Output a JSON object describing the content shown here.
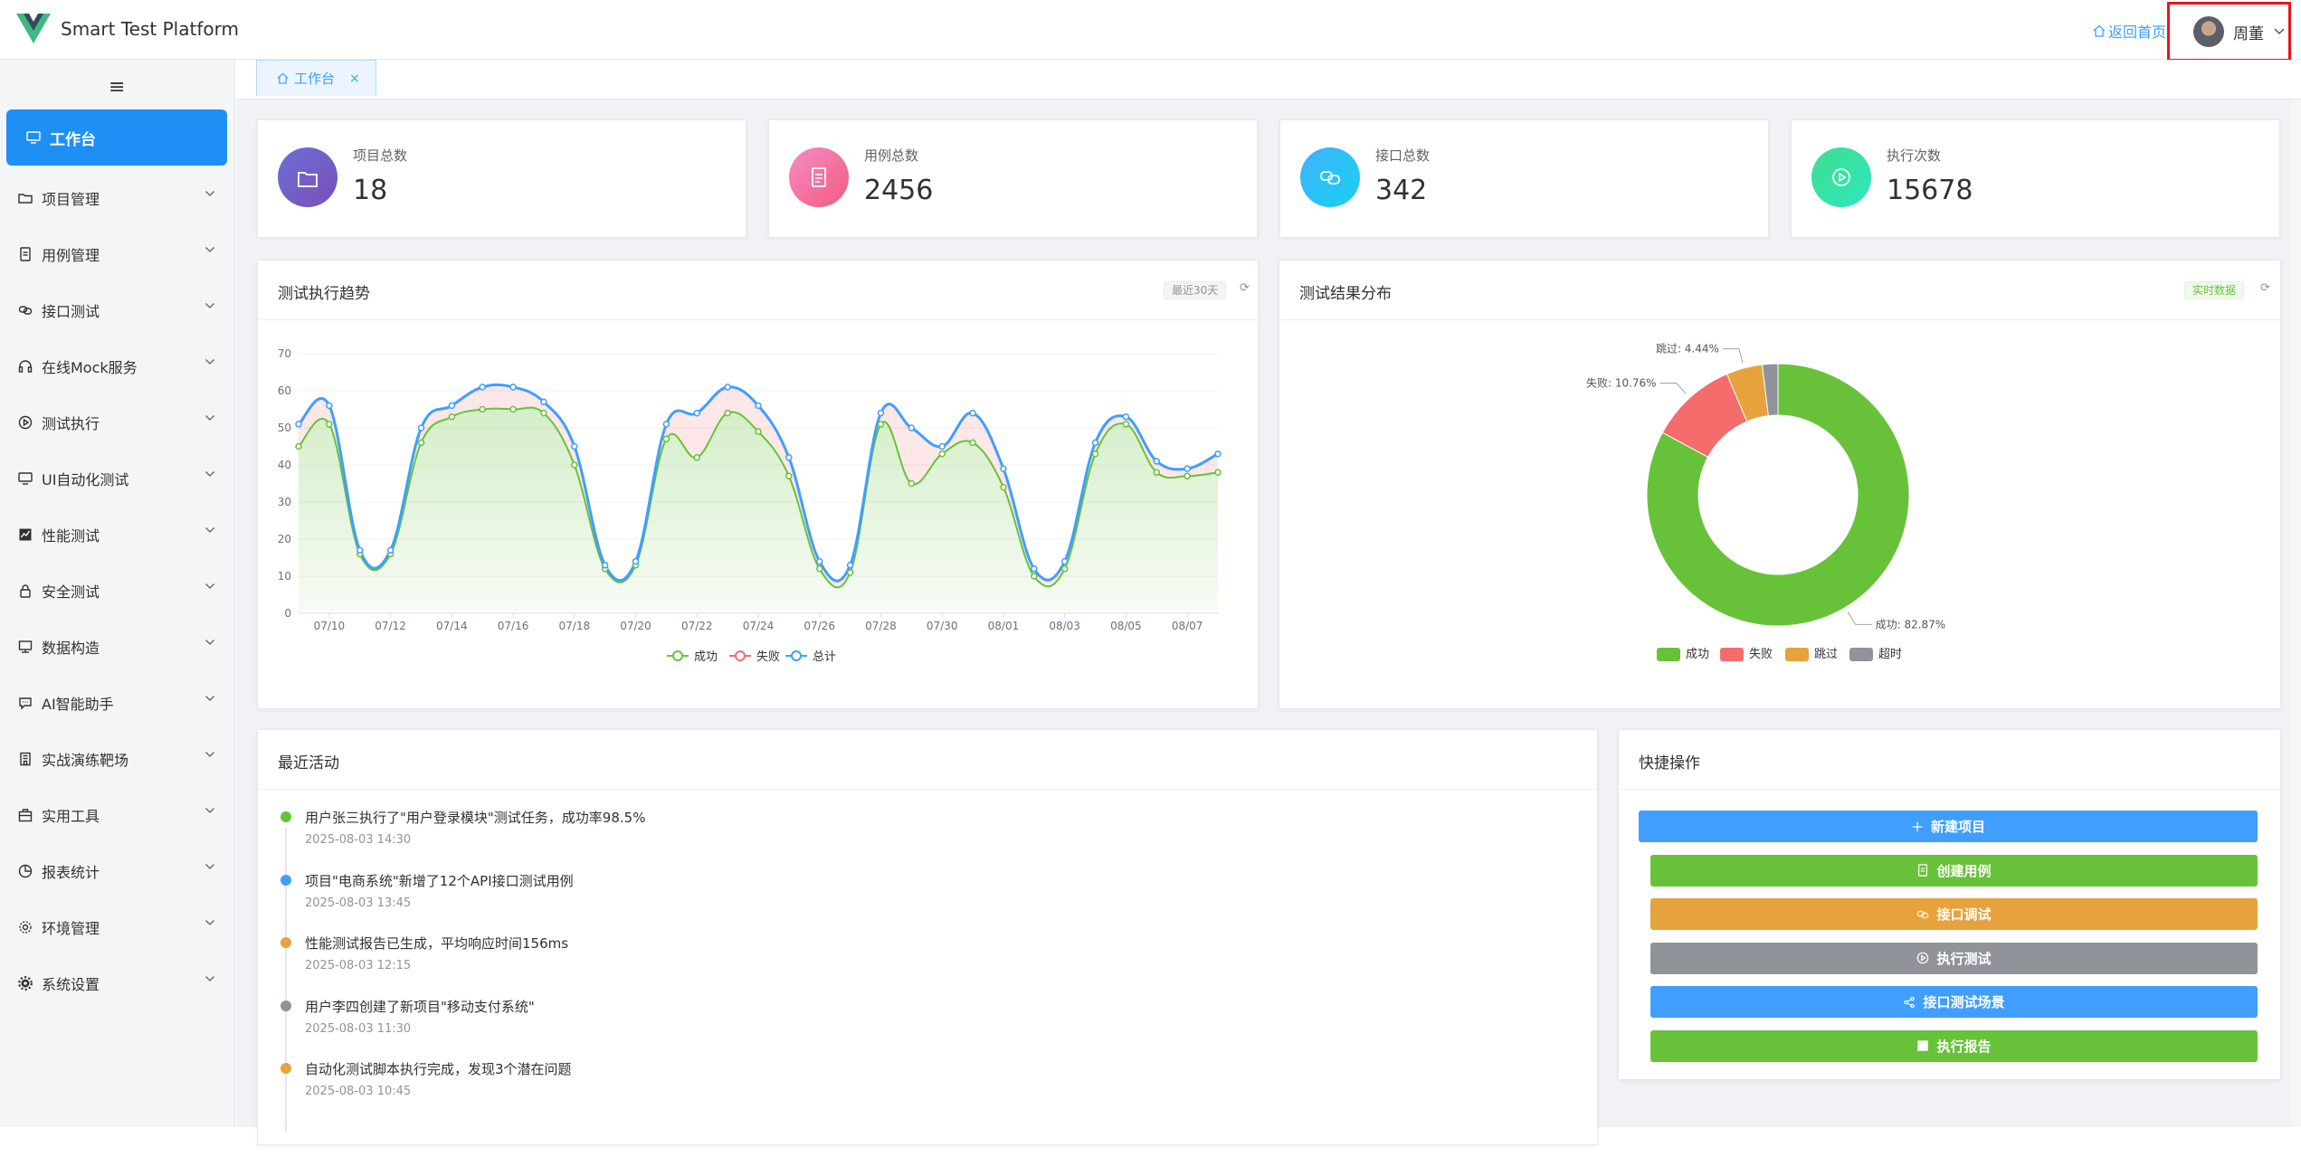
{
  "header": {
    "brand": "Smart Test Platform",
    "home_link": "返回首页",
    "user_name": "周董"
  },
  "sidebar": {
    "toggle": "≡",
    "active_item": "工作台",
    "items": [
      {
        "label": "项目管理",
        "icon": "folder-icon"
      },
      {
        "label": "用例管理",
        "icon": "document-icon"
      },
      {
        "label": "接口测试",
        "icon": "link-icon"
      },
      {
        "label": "在线Mock服务",
        "icon": "headset-icon"
      },
      {
        "label": "测试执行",
        "icon": "play-circle-icon"
      },
      {
        "label": "UI自动化测试",
        "icon": "monitor-icon"
      },
      {
        "label": "性能测试",
        "icon": "chart-icon"
      },
      {
        "label": "安全测试",
        "icon": "lock-icon"
      },
      {
        "label": "数据构造",
        "icon": "screen-icon"
      },
      {
        "label": "AI智能助手",
        "icon": "chat-icon"
      },
      {
        "label": "实战演练靶场",
        "icon": "building-icon"
      },
      {
        "label": "实用工具",
        "icon": "toolbox-icon"
      },
      {
        "label": "报表统计",
        "icon": "pie-icon"
      },
      {
        "label": "环境管理",
        "icon": "gear-icon"
      },
      {
        "label": "系统设置",
        "icon": "settings-icon"
      }
    ]
  },
  "tabs": [
    {
      "label": "工作台"
    }
  ],
  "stats": [
    {
      "label": "项目总数",
      "value": "18",
      "color_from": "#6a6fd6",
      "color_to": "#7b4fb8"
    },
    {
      "label": "用例总数",
      "value": "2456",
      "color_from": "#f58cc8",
      "color_to": "#f25b7e"
    },
    {
      "label": "接口总数",
      "value": "342",
      "color_from": "#3fb3fb",
      "color_to": "#18d0f2"
    },
    {
      "label": "执行次数",
      "value": "15678",
      "color_from": "#3dde8c",
      "color_to": "#2fe7c2"
    }
  ],
  "trend": {
    "title": "测试执行趋势",
    "tag": "最近30天"
  },
  "distribution": {
    "title": "测试结果分布",
    "tag": "实时数据"
  },
  "chart_data": [
    {
      "type": "area",
      "title": "",
      "x": [
        "07/09",
        "07/10",
        "07/11",
        "07/12",
        "07/13",
        "07/14",
        "07/15",
        "07/16",
        "07/17",
        "07/18",
        "07/19",
        "07/20",
        "07/21",
        "07/22",
        "07/23",
        "07/24",
        "07/25",
        "07/26",
        "07/27",
        "07/28",
        "07/29",
        "07/30",
        "07/31",
        "08/01",
        "08/02",
        "08/03",
        "08/04",
        "08/05",
        "08/06",
        "08/07",
        "08/08"
      ],
      "x_ticks": [
        "07/10",
        "07/12",
        "07/14",
        "07/16",
        "07/18",
        "07/20",
        "07/22",
        "07/24",
        "07/26",
        "07/28",
        "07/30",
        "08/01",
        "08/03",
        "08/05",
        "08/07"
      ],
      "ylim": [
        0,
        70
      ],
      "y_ticks": [
        0,
        10,
        20,
        30,
        40,
        50,
        60,
        70
      ],
      "legend": "bottom",
      "series": [
        {
          "name": "成功",
          "color": "#67c23a",
          "values": [
            45,
            51,
            16,
            16,
            46,
            53,
            55,
            55,
            54,
            40,
            12,
            13,
            47,
            42,
            54,
            49,
            37,
            12,
            11,
            51,
            35,
            43,
            46,
            34,
            10,
            12,
            43,
            51,
            38,
            37,
            38
          ]
        },
        {
          "name": "失败",
          "color": "#f56c6c",
          "values": [
            6,
            5,
            1,
            1,
            4,
            3,
            6,
            6,
            3,
            5,
            1,
            1,
            4,
            12,
            7,
            7,
            5,
            2,
            2,
            3,
            15,
            2,
            8,
            5,
            2,
            2,
            3,
            2,
            3,
            2,
            5
          ]
        },
        {
          "name": "总计",
          "color": "#409eff",
          "values": [
            51,
            56,
            17,
            17,
            50,
            56,
            61,
            61,
            57,
            45,
            13,
            14,
            51,
            54,
            61,
            56,
            42,
            14,
            13,
            54,
            50,
            45,
            54,
            39,
            12,
            14,
            46,
            53,
            41,
            39,
            43
          ]
        }
      ]
    },
    {
      "type": "pie",
      "title": "",
      "legend": "bottom",
      "slices": [
        {
          "name": "成功",
          "value": 82.87,
          "label": "成功: 82.87%",
          "color": "#67c23a"
        },
        {
          "name": "失败",
          "value": 10.76,
          "label": "失败: 10.76%",
          "color": "#f56c6c"
        },
        {
          "name": "跳过",
          "value": 4.44,
          "label": "跳过: 4.44%",
          "color": "#e6a23c"
        },
        {
          "name": "超时",
          "value": 1.93,
          "label": "",
          "color": "#909399"
        }
      ]
    }
  ],
  "activity": {
    "title": "最近活动",
    "items": [
      {
        "text": "用户张三执行了\"用户登录模块\"测试任务，成功率98.5%",
        "time": "2025-08-03 14:30",
        "color": "#67c23a"
      },
      {
        "text": "项目\"电商系统\"新增了12个API接口测试用例",
        "time": "2025-08-03 13:45",
        "color": "#409eff"
      },
      {
        "text": "性能测试报告已生成，平均响应时间156ms",
        "time": "2025-08-03 12:15",
        "color": "#e6a23c"
      },
      {
        "text": "用户李四创建了新项目\"移动支付系统\"",
        "time": "2025-08-03 11:30",
        "color": "#909399"
      },
      {
        "text": "自动化测试脚本执行完成，发现3个潜在问题",
        "time": "2025-08-03 10:45",
        "color": "#e6a23c"
      }
    ]
  },
  "quick": {
    "title": "快捷操作",
    "buttons": [
      {
        "label": "新建项目",
        "icon": "plus-icon",
        "color": "#409eff"
      },
      {
        "label": "创建用例",
        "icon": "document-icon",
        "color": "#67c23a"
      },
      {
        "label": "接口调试",
        "icon": "link-icon",
        "color": "#e6a23c"
      },
      {
        "label": "执行测试",
        "icon": "play-circle-icon",
        "color": "#909399"
      },
      {
        "label": "接口测试场景",
        "icon": "share-icon",
        "color": "#409eff"
      },
      {
        "label": "执行报告",
        "icon": "chart-icon",
        "color": "#67c23a"
      }
    ]
  }
}
